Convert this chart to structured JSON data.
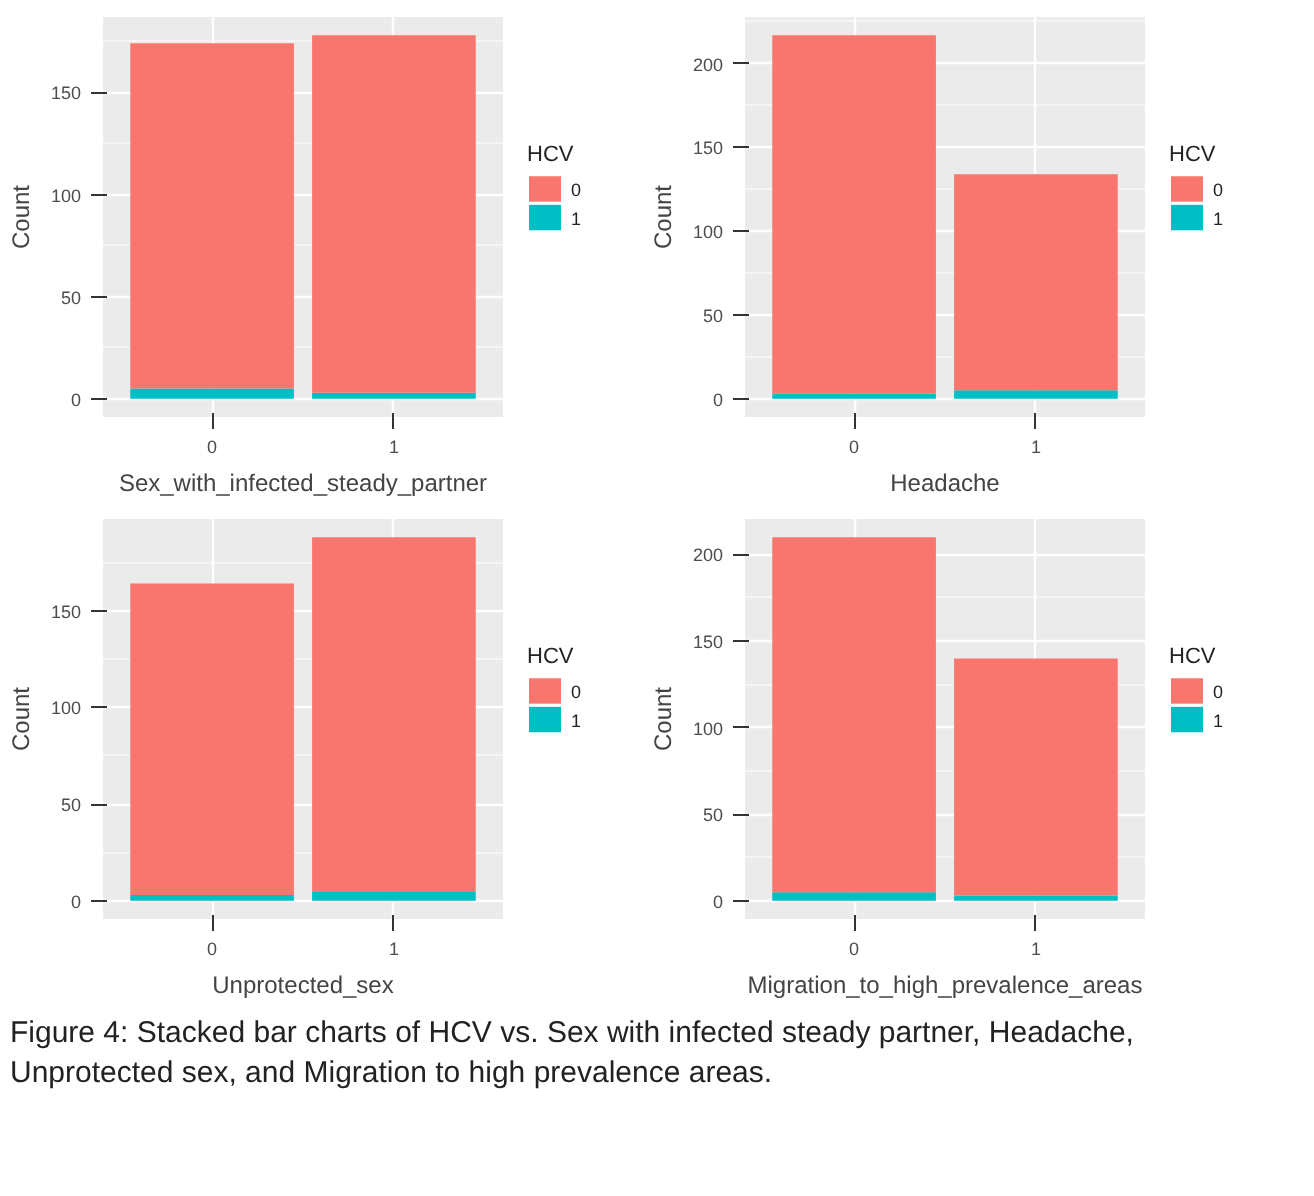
{
  "chart_data": [
    {
      "type": "bar",
      "stacked": true,
      "categories": [
        "0",
        "1"
      ],
      "xlabel": "Sex_with_infected_steady_partner",
      "ylabel": "Count",
      "legend_title": "HCV",
      "legend": "right",
      "grid": true,
      "ylim": [
        -8.9,
        186.9
      ],
      "yticks": [
        0,
        50,
        100,
        150
      ],
      "series": [
        {
          "name": "1",
          "color": "#00bfc4",
          "values": [
            5,
            3
          ]
        },
        {
          "name": "0",
          "color": "#f8766d",
          "values": [
            169,
            175
          ]
        }
      ]
    },
    {
      "type": "bar",
      "stacked": true,
      "categories": [
        "0",
        "1"
      ],
      "xlabel": "Headache",
      "ylabel": "Count",
      "legend_title": "HCV",
      "legend": "right",
      "grid": true,
      "ylim": [
        -10.9,
        227.9
      ],
      "yticks": [
        0,
        50,
        100,
        150,
        200
      ],
      "series": [
        {
          "name": "1",
          "color": "#00bfc4",
          "values": [
            3,
            5
          ]
        },
        {
          "name": "0",
          "color": "#f8766d",
          "values": [
            214,
            129
          ]
        }
      ]
    },
    {
      "type": "bar",
      "stacked": true,
      "categories": [
        "0",
        "1"
      ],
      "xlabel": "Unprotected_sex",
      "ylabel": "Count",
      "legend_title": "HCV",
      "legend": "right",
      "grid": true,
      "ylim": [
        -9.4,
        197.4
      ],
      "yticks": [
        0,
        50,
        100,
        150
      ],
      "series": [
        {
          "name": "1",
          "color": "#00bfc4",
          "values": [
            3,
            5
          ]
        },
        {
          "name": "0",
          "color": "#f8766d",
          "values": [
            161,
            183
          ]
        }
      ]
    },
    {
      "type": "bar",
      "stacked": true,
      "categories": [
        "0",
        "1"
      ],
      "xlabel": "Migration_to_high_prevalence_areas",
      "ylabel": "Count",
      "legend_title": "HCV",
      "legend": "right",
      "grid": true,
      "ylim": [
        -10.5,
        220.5
      ],
      "yticks": [
        0,
        50,
        100,
        150,
        200
      ],
      "annotations": [
        "Figure 4: Stacked bar charts of HCV vs. Sex with infected steady partner, Headache, Unprotected sex, and Migration to high prevalence areas."
      ],
      "series": [
        {
          "name": "1",
          "color": "#00bfc4",
          "values": [
            5,
            3
          ]
        },
        {
          "name": "0",
          "color": "#f8766d",
          "values": [
            205,
            137
          ]
        }
      ]
    }
  ]
}
